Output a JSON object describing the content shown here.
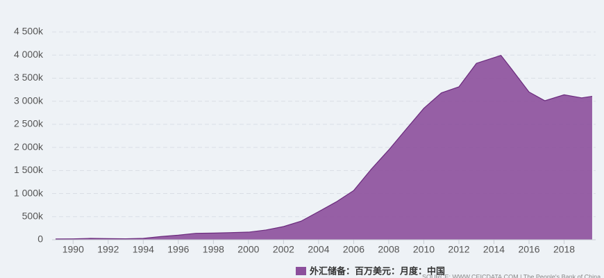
{
  "chart_data": {
    "type": "area",
    "x": [
      1989.0,
      1990.0,
      1991.0,
      1992.0,
      1993.0,
      1994.0,
      1995.0,
      1996.0,
      1997.0,
      1998.0,
      1999.0,
      2000.0,
      2001.0,
      2002.0,
      2003.0,
      2004.0,
      2005.0,
      2006.0,
      2007.0,
      2008.0,
      2009.0,
      2010.0,
      2011.0,
      2012.0,
      2013.0,
      2014.4,
      2015.0,
      2016.0,
      2016.9,
      2018.0,
      2019.0,
      2019.6
    ],
    "series": [
      {
        "name": "外汇储备：百万美元：月度：中国",
        "color": "#8c4f9c",
        "values": [
          17000,
          20000,
          30000,
          25000,
          22000,
          30000,
          70000,
          100000,
          140000,
          145000,
          155000,
          165000,
          212000,
          286000,
          403000,
          610000,
          819000,
          1066000,
          1528000,
          1946000,
          2399000,
          2847000,
          3181000,
          3312000,
          3821000,
          3993000,
          3700000,
          3200000,
          3011000,
          3140000,
          3073000,
          3107000
        ]
      }
    ],
    "xlim": [
      1988.8,
      2019.8
    ],
    "xticks": [
      1990,
      1992,
      1994,
      1996,
      1998,
      2000,
      2002,
      2004,
      2006,
      2008,
      2010,
      2012,
      2014,
      2016,
      2018
    ],
    "ylim": [
      0,
      4500000
    ],
    "yticks": [
      0,
      {
        "value": 500000,
        "label": "500k"
      },
      {
        "value": 1000000,
        "label": "1 000k"
      },
      {
        "value": 1500000,
        "label": "1 500k"
      },
      {
        "value": 2000000,
        "label": "2 000k"
      },
      {
        "value": 2500000,
        "label": "2 500k"
      },
      {
        "value": 3000000,
        "label": "3 000k"
      },
      {
        "value": 3500000,
        "label": "3 500k"
      },
      {
        "value": 4000000,
        "label": "4 000k"
      },
      {
        "value": 4500000,
        "label": "4 500k"
      }
    ],
    "grid": true,
    "source": "SOURCE: WWW.CEICDATA.COM | The People's Bank of China"
  }
}
